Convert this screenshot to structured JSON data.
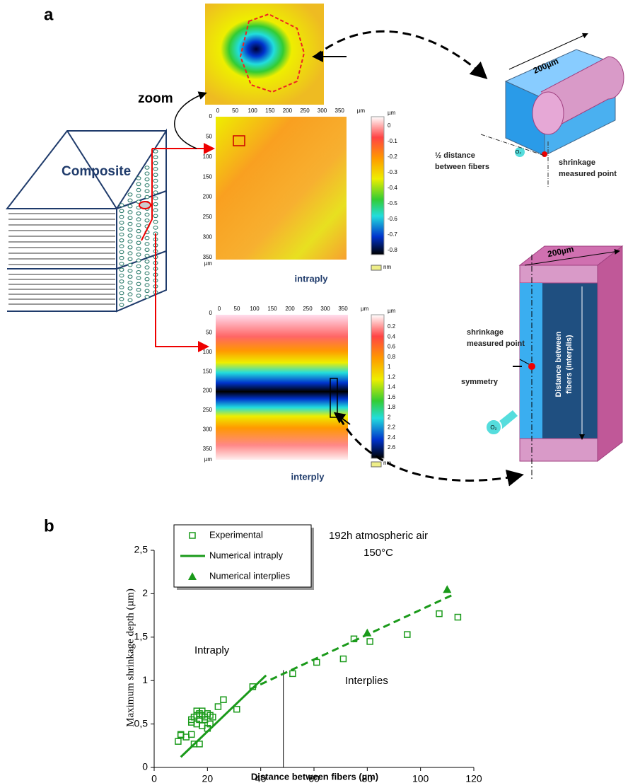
{
  "figure": {
    "panel_a_label": "a",
    "zoom": "zoom",
    "composite": "Composite",
    "intraply_map": {
      "caption": "intraply",
      "x_ticks": [
        "0",
        "50",
        "100",
        "150",
        "200",
        "250",
        "300",
        "350"
      ],
      "x_unit": "µm",
      "y_ticks": [
        "0",
        "50",
        "100",
        "150",
        "200",
        "250",
        "300",
        "350"
      ],
      "y_unit": "µm",
      "colorbar": [
        "0",
        "-0.1",
        "-0.2",
        "-0.3",
        "-0.4",
        "-0.5",
        "-0.6",
        "-0.7",
        "-0.8"
      ],
      "colorbar_unit": "µm",
      "colorbar_bottom": "nm"
    },
    "interply_map": {
      "caption": "interply",
      "x_ticks": [
        "0",
        "50",
        "100",
        "150",
        "200",
        "250",
        "300",
        "350"
      ],
      "x_unit": "µm",
      "y_ticks": [
        "0",
        "50",
        "100",
        "150",
        "200",
        "250",
        "300",
        "350"
      ],
      "y_unit": "µm",
      "colorbar": [
        "0.2",
        "0.4",
        "0.6",
        "0.8",
        "1",
        "1.2",
        "1.4",
        "1.6",
        "1.8",
        "2",
        "2.2",
        "2.4",
        "2.6"
      ],
      "colorbar_unit": "µm",
      "colorbar_bottom": "nm"
    },
    "fiber_model": {
      "length": "200µm",
      "half_distance": [
        "½ distance",
        "between fibers"
      ],
      "point": [
        "shrinkage",
        "measured point"
      ],
      "o2": "O₂"
    },
    "interply_model": {
      "length": "200µm",
      "point": [
        "shrinkage",
        "measured point"
      ],
      "symmetry": "symmetry",
      "distance": [
        "Distance between",
        "fibers (interplis)"
      ],
      "o2": "O₂"
    },
    "panel_b_label": "b"
  },
  "chart_data": {
    "type": "scatter",
    "x_label": "Distance between fibers (µm)",
    "y_label": "Maximum shrinkage depth (µm)",
    "annotation": [
      "192h atmospheric air",
      "150°C"
    ],
    "region_labels": [
      "Intraply",
      "Interplies"
    ],
    "xlim": [
      0,
      120
    ],
    "xticks": [
      0,
      20,
      40,
      60,
      80,
      100,
      120
    ],
    "ylim": [
      0,
      2.5
    ],
    "yticks": [
      0,
      {
        "value": 0.5,
        "label": "0,5"
      },
      1,
      {
        "value": 1.5,
        "label": "1,5"
      },
      2,
      {
        "value": 2.5,
        "label": "2,5"
      }
    ],
    "divider_x": 48.5,
    "divider_top": 1.12,
    "legend": "top-left",
    "series": [
      {
        "name": "Experimental",
        "color": "#1a9a1a",
        "marker": "square",
        "x": [
          9,
          10,
          10,
          12,
          14,
          14,
          14,
          15,
          15,
          16,
          16,
          16,
          17,
          17,
          17,
          18,
          18,
          18,
          19,
          19,
          20,
          20,
          21,
          21,
          22,
          24,
          26,
          31,
          37,
          52,
          61,
          71,
          75,
          81,
          95,
          107,
          114
        ],
        "values": [
          0.3,
          0.38,
          0.37,
          0.35,
          0.38,
          0.52,
          0.55,
          0.27,
          0.58,
          0.5,
          0.6,
          0.65,
          0.27,
          0.55,
          0.62,
          0.48,
          0.6,
          0.65,
          0.55,
          0.58,
          0.45,
          0.62,
          0.5,
          0.6,
          0.58,
          0.7,
          0.78,
          0.67,
          0.93,
          1.08,
          1.21,
          1.25,
          1.48,
          1.45,
          1.53,
          1.77,
          1.73
        ]
      },
      {
        "name": "Numerical intraply",
        "color": "#1a9a1a",
        "line": "solid",
        "x": [
          10,
          42
        ],
        "values": [
          0.12,
          1.06
        ]
      },
      {
        "name": "Numerical interplies",
        "color": "#1a9a1a",
        "marker": "triangle",
        "x": [
          80,
          110
        ],
        "values": [
          1.55,
          2.05
        ]
      },
      {
        "color": "#1a9a1a",
        "line": "dashed",
        "x": [
          36,
          113
        ],
        "values": [
          0.9,
          2.0
        ]
      }
    ]
  }
}
